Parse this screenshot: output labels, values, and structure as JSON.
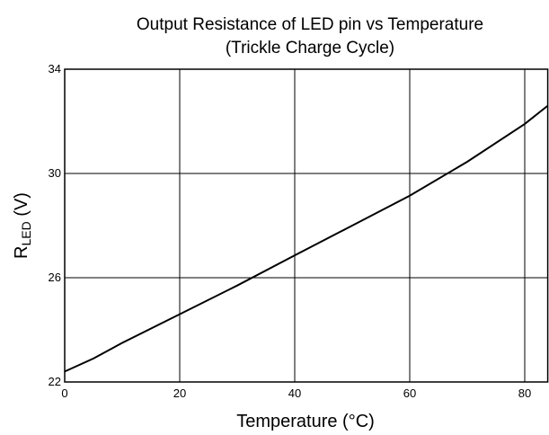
{
  "chart_data": {
    "type": "line",
    "title": [
      "Output Resistance of LED pin vs Temperature",
      "(Trickle Charge Cycle)"
    ],
    "xlabel": "Temperature (°C)",
    "ylabel": [
      "R",
      "LED",
      " (V)"
    ],
    "series": [
      {
        "color": "#000000",
        "x": [
          0,
          5,
          10,
          20,
          30,
          40,
          50,
          60,
          70,
          80,
          84
        ],
        "values": [
          22.4,
          22.9,
          23.5,
          24.6,
          25.7,
          26.86,
          28.0,
          29.15,
          30.45,
          31.9,
          32.6
        ]
      }
    ],
    "xlim": [
      0,
      84
    ],
    "xticks": [
      0,
      20,
      40,
      60,
      80
    ],
    "ylim": [
      22,
      34
    ],
    "yticks": [
      22,
      26,
      30,
      34
    ],
    "grid": true
  }
}
